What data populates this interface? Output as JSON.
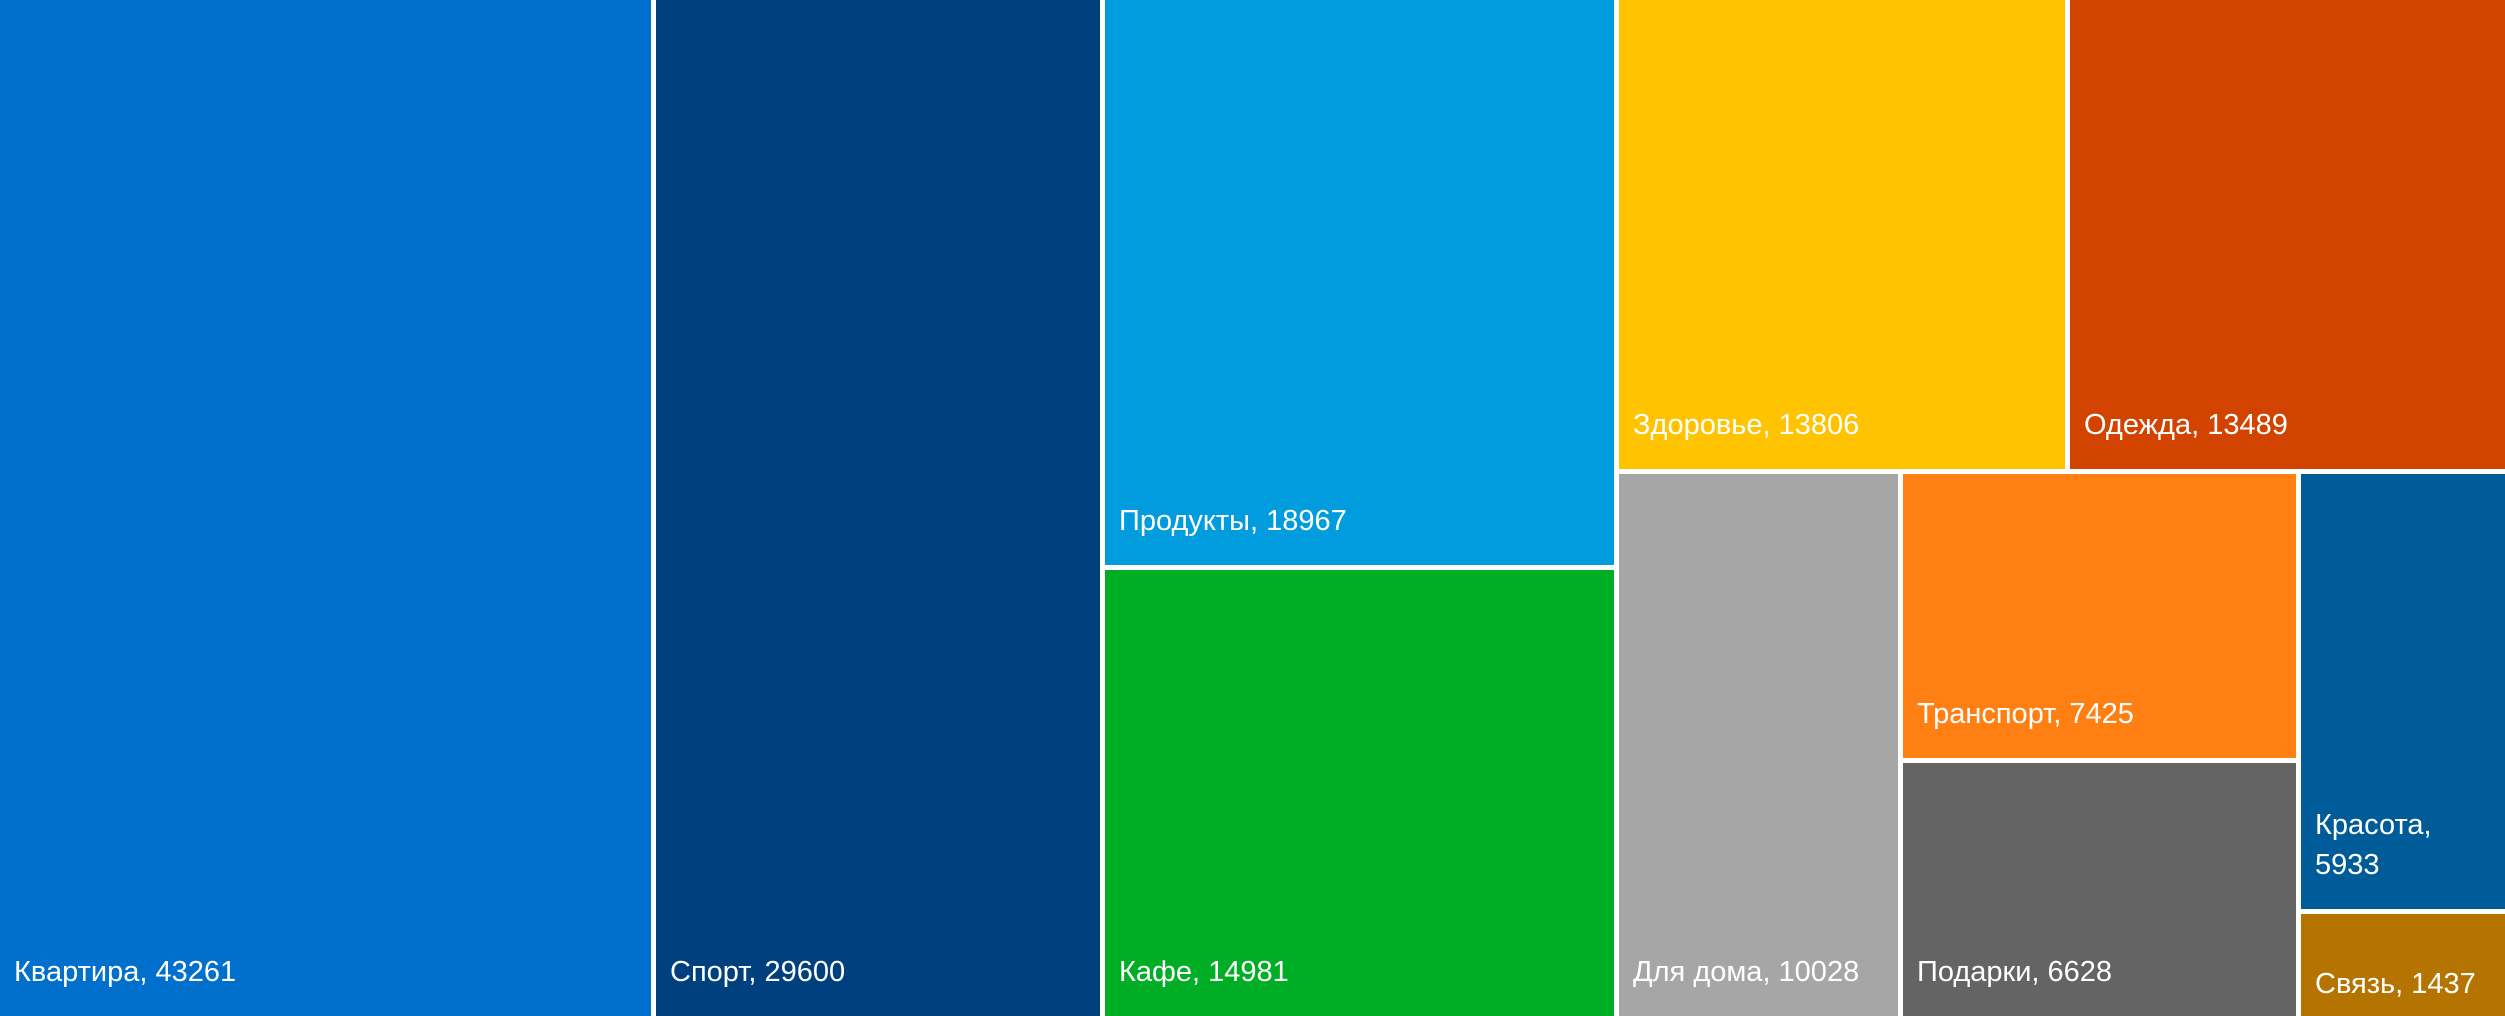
{
  "chart_data": {
    "type": "treemap",
    "label_separator": ", ",
    "items": [
      {
        "name": "Квартира",
        "value": 43261,
        "color": "#0070CC"
      },
      {
        "name": "Спорт",
        "value": 29600,
        "color": "#00407E"
      },
      {
        "name": "Продукты",
        "value": 18967,
        "color": "#009CDE"
      },
      {
        "name": "Кафе",
        "value": 14981,
        "color": "#00AE26"
      },
      {
        "name": "Здоровье",
        "value": 13806,
        "color": "#FFC300"
      },
      {
        "name": "Одежда",
        "value": 13489,
        "color": "#D24300"
      },
      {
        "name": "Для дома",
        "value": 10028,
        "color": "#A6A6A6"
      },
      {
        "name": "Транспорт",
        "value": 7425,
        "color": "#FF7F12"
      },
      {
        "name": "Подарки",
        "value": 6628,
        "color": "#646464"
      },
      {
        "name": "Красота",
        "value": 5933,
        "color": "#005C98"
      },
      {
        "name": "Связь",
        "value": 1437,
        "color": "#B57400"
      }
    ]
  }
}
